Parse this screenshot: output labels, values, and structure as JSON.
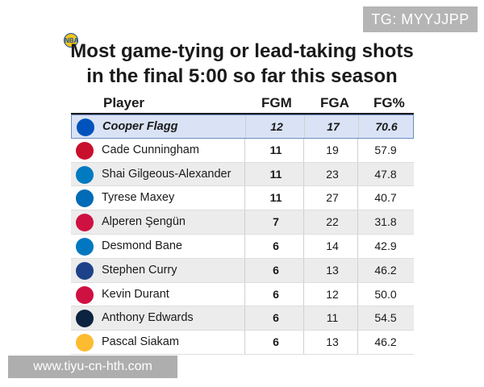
{
  "watermarks": {
    "top": "TG: MYYJJPP",
    "bottom": "www.tiyu-cn-hth.com"
  },
  "badge_label": "NBA",
  "title": {
    "line1": "Most game-tying or lead-taking shots",
    "line2": "in the final 5:00 so far this season"
  },
  "table": {
    "headers": [
      "Player",
      "FGM",
      "FGA",
      "FG%"
    ],
    "rows": [
      {
        "player": "Cooper Flagg",
        "fgm": "12",
        "fga": "17",
        "fg_pct": "70.6",
        "team_icon": "mavericks-logo",
        "team_color": "#0053bc",
        "highlight": true
      },
      {
        "player": "Cade Cunningham",
        "fgm": "11",
        "fga": "19",
        "fg_pct": "57.9",
        "team_icon": "pistons-logo",
        "team_color": "#c8102e"
      },
      {
        "player": "Shai Gilgeous-Alexander",
        "fgm": "11",
        "fga": "23",
        "fg_pct": "47.8",
        "team_icon": "thunder-logo",
        "team_color": "#007ac1"
      },
      {
        "player": "Tyrese Maxey",
        "fgm": "11",
        "fga": "27",
        "fg_pct": "40.7",
        "team_icon": "76ers-logo",
        "team_color": "#006bb6"
      },
      {
        "player": "Alperen Şengün",
        "fgm": "7",
        "fga": "22",
        "fg_pct": "31.8",
        "team_icon": "rockets-logo",
        "team_color": "#ce1141"
      },
      {
        "player": "Desmond Bane",
        "fgm": "6",
        "fga": "14",
        "fg_pct": "42.9",
        "team_icon": "magic-logo",
        "team_color": "#0077c0"
      },
      {
        "player": "Stephen Curry",
        "fgm": "6",
        "fga": "13",
        "fg_pct": "46.2",
        "team_icon": "warriors-logo",
        "team_color": "#1d428a"
      },
      {
        "player": "Kevin Durant",
        "fgm": "6",
        "fga": "12",
        "fg_pct": "50.0",
        "team_icon": "rockets-logo",
        "team_color": "#ce1141"
      },
      {
        "player": "Anthony Edwards",
        "fgm": "6",
        "fga": "11",
        "fg_pct": "54.5",
        "team_icon": "timberwolves-logo",
        "team_color": "#0c2340"
      },
      {
        "player": "Pascal Siakam",
        "fgm": "6",
        "fga": "13",
        "fg_pct": "46.2",
        "team_icon": "pacers-logo",
        "team_color": "#fdbb30"
      }
    ]
  }
}
